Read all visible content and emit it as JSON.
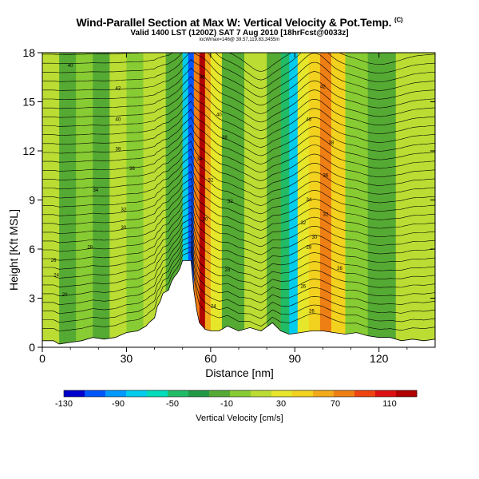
{
  "chart_data": {
    "type": "heatmap",
    "title": "Wind-Parallel Section at Max W: Vertical Velocity & Pot.Temp.",
    "title_tag": "(C)",
    "subtitle": "Valid 1400 LST (1200Z) SAT 7 Aug 2010 [18hrFcst@0033z]",
    "subtitle2": "locWmax=146@ 39.57,119.83,3455m",
    "xlabel": "Distance [nm]",
    "ylabel": "Height [Kft MSL]",
    "xlim": [
      0,
      140
    ],
    "ylim": [
      0,
      18
    ],
    "x_ticks": [
      "0",
      "30",
      "60",
      "90",
      "120"
    ],
    "y_ticks": [
      "0",
      "3",
      "6",
      "9",
      "12",
      "15",
      "18"
    ],
    "colorbar": {
      "label": "Vertical Velocity [cm/s]",
      "tick_labels": [
        "-130",
        "-90",
        "-50",
        "-10",
        "30",
        "70",
        "110"
      ],
      "range": [
        -130,
        130
      ],
      "colors": [
        "#0000cc",
        "#0055ff",
        "#0099ff",
        "#00ccee",
        "#00ddbb",
        "#22bb66",
        "#229944",
        "#55aa33",
        "#88cc33",
        "#bbdd33",
        "#e6e62a",
        "#f2d21e",
        "#f2aa1a",
        "#ee7f15",
        "#ee4411",
        "#dd1111",
        "#b00000"
      ]
    },
    "background_velocity": 5,
    "velocity_bands": [
      {
        "x0": 0,
        "x1": 6,
        "w": 15
      },
      {
        "x0": 6,
        "x1": 12,
        "w": -10
      },
      {
        "x0": 12,
        "x1": 18,
        "w": 5
      },
      {
        "x0": 18,
        "x1": 24,
        "w": -10
      },
      {
        "x0": 24,
        "x1": 30,
        "w": 10
      },
      {
        "x0": 30,
        "x1": 36,
        "w": 0
      },
      {
        "x0": 36,
        "x1": 44,
        "w": 15
      },
      {
        "x0": 44,
        "x1": 50,
        "w": -20
      },
      {
        "x0": 50,
        "x1": 52,
        "w": -70
      },
      {
        "x0": 52,
        "x1": 54,
        "w": -110
      },
      {
        "x0": 54,
        "x1": 56,
        "w": 80
      },
      {
        "x0": 56,
        "x1": 58,
        "w": 115
      },
      {
        "x0": 58,
        "x1": 60,
        "w": 60
      },
      {
        "x0": 60,
        "x1": 64,
        "w": 25
      },
      {
        "x0": 64,
        "x1": 72,
        "w": -10
      },
      {
        "x0": 72,
        "x1": 80,
        "w": 10
      },
      {
        "x0": 80,
        "x1": 85,
        "w": -20
      },
      {
        "x0": 85,
        "x1": 88,
        "w": -40
      },
      {
        "x0": 88,
        "x1": 91,
        "w": -70
      },
      {
        "x0": 91,
        "x1": 95,
        "w": 25
      },
      {
        "x0": 95,
        "x1": 99,
        "w": 50
      },
      {
        "x0": 99,
        "x1": 103,
        "w": 70
      },
      {
        "x0": 103,
        "x1": 108,
        "w": 45
      },
      {
        "x0": 108,
        "x1": 116,
        "w": 5
      },
      {
        "x0": 116,
        "x1": 126,
        "w": -10
      },
      {
        "x0": 126,
        "x1": 140,
        "w": 10
      }
    ],
    "terrain": [
      [
        0,
        0.4
      ],
      [
        4,
        0.4
      ],
      [
        6,
        0.2
      ],
      [
        10,
        0.3
      ],
      [
        14,
        0.4
      ],
      [
        18,
        0.6
      ],
      [
        22,
        0.5
      ],
      [
        26,
        0.6
      ],
      [
        30,
        0.9
      ],
      [
        34,
        1.0
      ],
      [
        37,
        1.3
      ],
      [
        38,
        1.5
      ],
      [
        40,
        1.8
      ],
      [
        41,
        2.5
      ],
      [
        42,
        2.8
      ],
      [
        43,
        3.3
      ],
      [
        45,
        3.5
      ],
      [
        46,
        4.0
      ],
      [
        47,
        4.3
      ],
      [
        48,
        4.5
      ],
      [
        49,
        4.8
      ],
      [
        50,
        5.3
      ],
      [
        53,
        5.3
      ],
      [
        54,
        3.5
      ],
      [
        55,
        2.3
      ],
      [
        56,
        1.5
      ],
      [
        58,
        1.1
      ],
      [
        60,
        1.0
      ],
      [
        63,
        1.0
      ],
      [
        66,
        1.3
      ],
      [
        70,
        1.0
      ],
      [
        74,
        1.2
      ],
      [
        78,
        1.0
      ],
      [
        82,
        1.5
      ],
      [
        85,
        1.0
      ],
      [
        88,
        0.8
      ],
      [
        92,
        0.9
      ],
      [
        96,
        1.0
      ],
      [
        100,
        1.0
      ],
      [
        104,
        0.9
      ],
      [
        108,
        0.8
      ],
      [
        112,
        0.9
      ],
      [
        116,
        0.7
      ],
      [
        120,
        0.6
      ],
      [
        124,
        0.6
      ],
      [
        128,
        0.4
      ],
      [
        132,
        0.5
      ],
      [
        136,
        0.4
      ],
      [
        140,
        0.5
      ]
    ],
    "isentrope_labels": [
      {
        "text": "40",
        "x": 10,
        "y": 17.2
      },
      {
        "text": "42",
        "x": 27,
        "y": 15.8
      },
      {
        "text": "40",
        "x": 27,
        "y": 13.9
      },
      {
        "text": "38",
        "x": 27,
        "y": 12.1
      },
      {
        "text": "36",
        "x": 32,
        "y": 10.9
      },
      {
        "text": "34",
        "x": 19,
        "y": 9.6
      },
      {
        "text": "32",
        "x": 29,
        "y": 8.4
      },
      {
        "text": "30",
        "x": 29,
        "y": 7.3
      },
      {
        "text": "28",
        "x": 17,
        "y": 6.1
      },
      {
        "text": "26",
        "x": 4,
        "y": 5.3
      },
      {
        "text": "24",
        "x": 5,
        "y": 4.4
      },
      {
        "text": "20",
        "x": 8,
        "y": 3.2
      },
      {
        "text": "46",
        "x": 57,
        "y": 16.5
      },
      {
        "text": "40",
        "x": 63,
        "y": 14.2
      },
      {
        "text": "38",
        "x": 65,
        "y": 12.8
      },
      {
        "text": "34",
        "x": 56,
        "y": 11.5
      },
      {
        "text": "32",
        "x": 60,
        "y": 10.2
      },
      {
        "text": "32",
        "x": 67,
        "y": 8.9
      },
      {
        "text": "30",
        "x": 58,
        "y": 7.8
      },
      {
        "text": "28",
        "x": 66,
        "y": 4.7
      },
      {
        "text": "24",
        "x": 61,
        "y": 2.5
      },
      {
        "text": "42",
        "x": 100,
        "y": 15.9
      },
      {
        "text": "40",
        "x": 95,
        "y": 13.9
      },
      {
        "text": "38",
        "x": 103,
        "y": 12.5
      },
      {
        "text": "36",
        "x": 101,
        "y": 10.5
      },
      {
        "text": "34",
        "x": 95,
        "y": 9.0
      },
      {
        "text": "32",
        "x": 101,
        "y": 8.1
      },
      {
        "text": "32",
        "x": 93,
        "y": 7.6
      },
      {
        "text": "30",
        "x": 97,
        "y": 6.7
      },
      {
        "text": "28",
        "x": 95,
        "y": 6.1
      },
      {
        "text": "26",
        "x": 106,
        "y": 4.8
      },
      {
        "text": "26",
        "x": 93,
        "y": 3.7
      },
      {
        "text": "26",
        "x": 96,
        "y": 2.2
      }
    ]
  }
}
